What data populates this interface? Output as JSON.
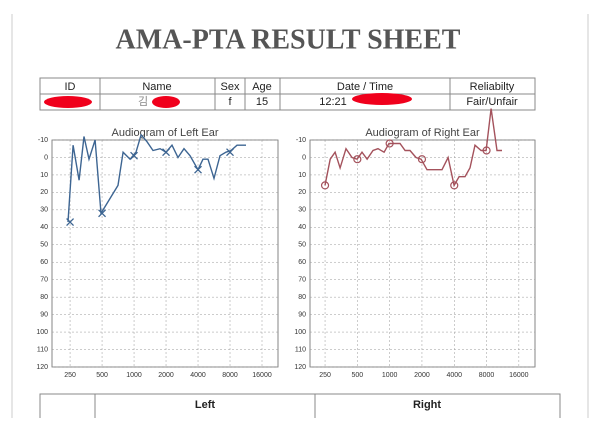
{
  "header": {
    "title": "AMA-PTA RESULT SHEET"
  },
  "info_table": {
    "headers": [
      "ID",
      "Name",
      "Sex",
      "Age",
      "Date / Time",
      "Reliabilty"
    ],
    "row": {
      "name": "김",
      "sex": "f",
      "age": "15",
      "time": "12:21",
      "reliability": "Fair/Unfair"
    }
  },
  "chart_data": [
    {
      "type": "line",
      "title": "Audiogram of Left Ear",
      "xscale": "log",
      "xlim": [
        169,
        22627
      ],
      "xticks": [
        250,
        500,
        1000,
        2000,
        4000,
        8000,
        16000
      ],
      "ylim": [
        -10,
        120
      ],
      "y_inverted": true,
      "yticks": [
        -10,
        0,
        10,
        20,
        30,
        40,
        50,
        60,
        70,
        80,
        90,
        100,
        110,
        120
      ],
      "grid": true,
      "series": [
        {
          "color": "#3d6592",
          "marker": "none",
          "x": [
            239,
            267,
            304,
            338,
            377,
            430,
            489,
            707,
            788,
            917,
            1044,
            1164,
            1325,
            1509,
            1757,
            2000,
            2278,
            2594,
            2954,
            3364,
            4000,
            4457,
            4967,
            5657,
            6443,
            7337,
            8178,
            9314,
            11314
          ],
          "values": [
            37,
            -7,
            13,
            -12,
            1,
            -10,
            32,
            16,
            -3,
            1,
            -3,
            -13,
            -9,
            -4,
            -5,
            -3,
            -7,
            0,
            -5,
            -1,
            7,
            1,
            1,
            12,
            -1,
            -3,
            -4,
            -7,
            -7
          ]
        },
        {
          "color": "#3d6592",
          "marker": "x",
          "x": [
            250,
            500,
            1000,
            2000,
            4000,
            8000
          ],
          "values": [
            37,
            32,
            -1,
            -3,
            7,
            -3
          ]
        }
      ]
    },
    {
      "type": "line",
      "title": "Audiogram of Right Ear",
      "xscale": "log",
      "xlim": [
        181,
        22627
      ],
      "xticks": [
        250,
        500,
        1000,
        2000,
        4000,
        8000,
        16000
      ],
      "ylim": [
        -10,
        120
      ],
      "y_inverted": true,
      "yticks": [
        -10,
        0,
        10,
        20,
        30,
        40,
        50,
        60,
        70,
        80,
        90,
        100,
        110,
        120
      ],
      "grid": true,
      "series": [
        {
          "color": "#a4525c",
          "marker": "none",
          "x": [
            250,
            279,
            310,
            345,
            392,
            446,
            497,
            553,
            616,
            700,
            779,
            887,
            987,
            1123,
            1249,
            1392,
            1548,
            1762,
            1962,
            2231,
            3078,
            3502,
            3986,
            4435,
            5043,
            5614,
            6250,
            7111,
            7918,
            8812,
            10021,
            11153
          ],
          "values": [
            16,
            1,
            -3,
            6,
            -5,
            0,
            1,
            -3,
            1,
            -4,
            -5,
            -3,
            -8,
            -8,
            -8,
            -4,
            -4,
            0,
            1,
            7,
            7,
            0,
            16,
            11,
            11,
            6,
            -7,
            -4,
            -4,
            -28,
            -4,
            -4
          ]
        },
        {
          "color": "#a4525c",
          "marker": "o",
          "x": [
            250,
            500,
            1000,
            2000,
            4000,
            8000
          ],
          "values": [
            16,
            1,
            -8,
            1,
            16,
            -4
          ]
        }
      ]
    }
  ],
  "bottom_table": {
    "headers": [
      "Left",
      "Right"
    ]
  }
}
